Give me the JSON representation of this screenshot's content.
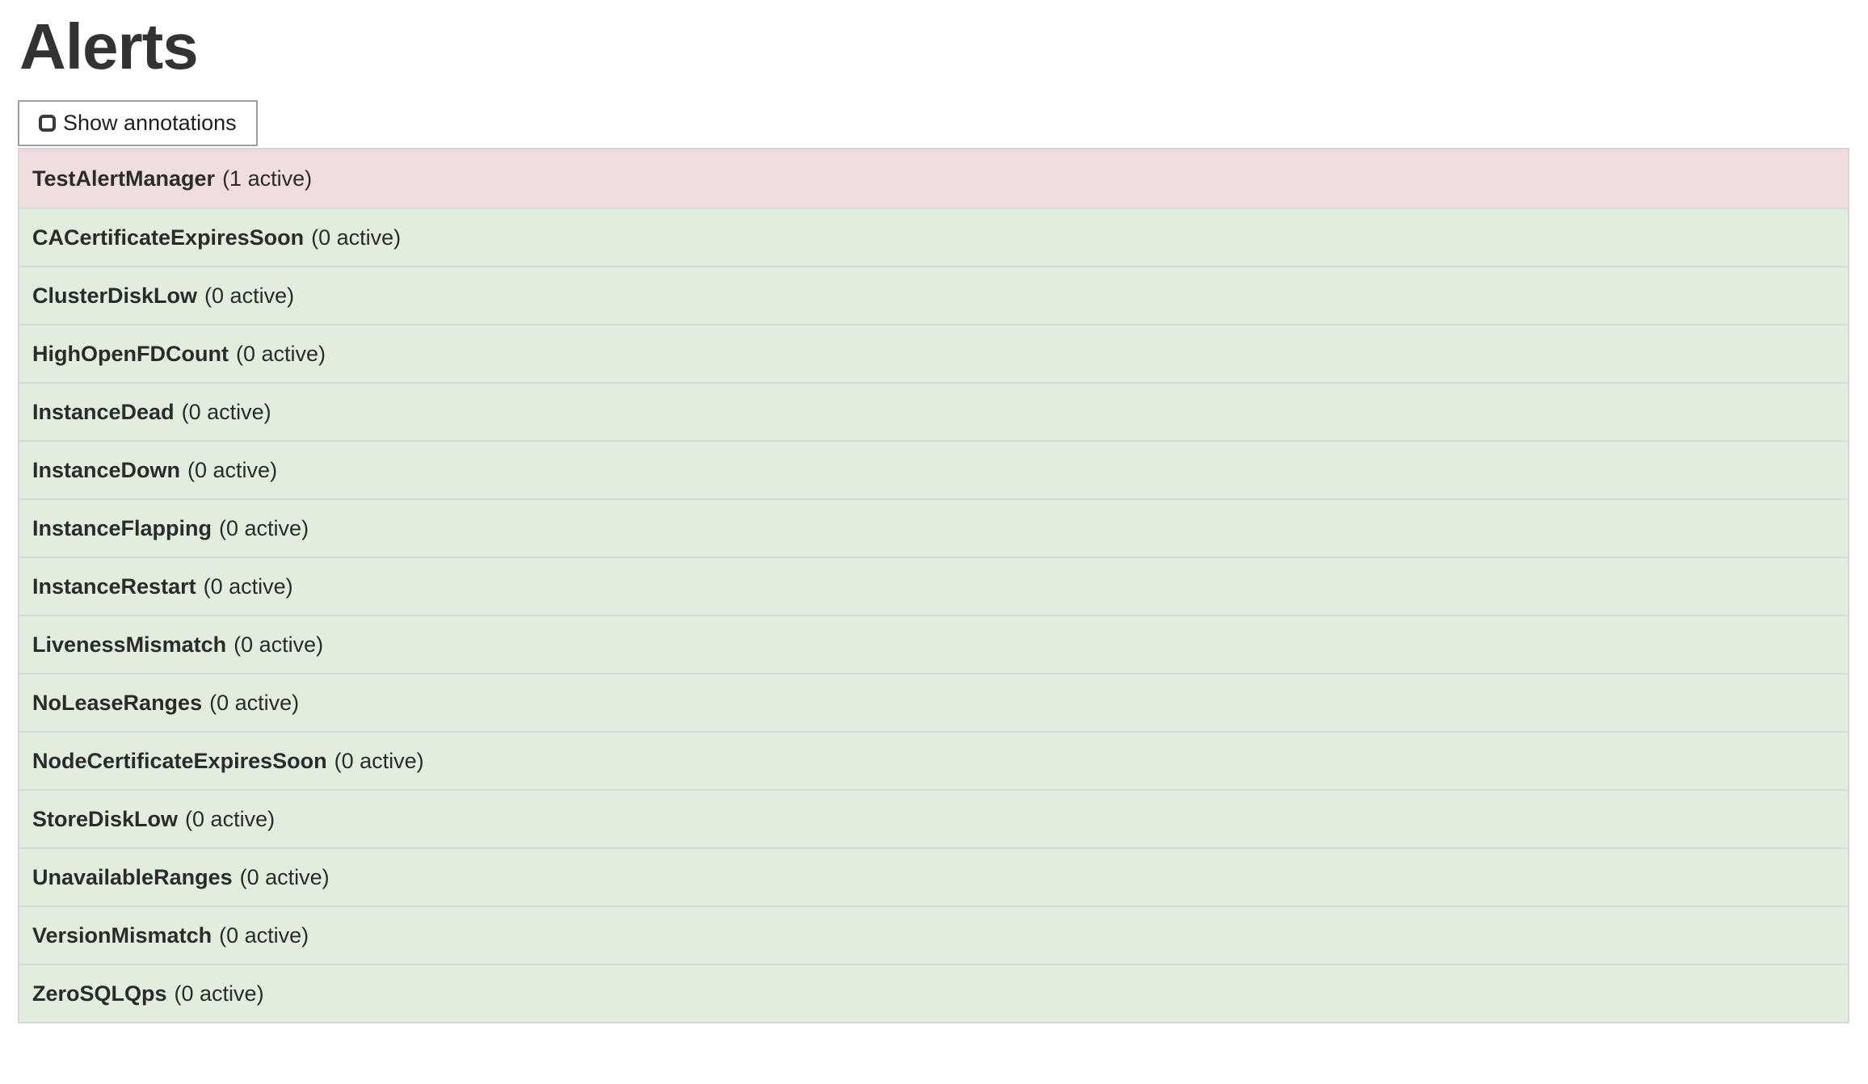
{
  "page": {
    "title": "Alerts"
  },
  "toolbar": {
    "show_annotations_label": "Show annotations",
    "checkbox_checked": false
  },
  "colors": {
    "firing_row_bg": "#f0dede",
    "inactive_row_bg": "#e2eedd",
    "table_border": "#d6d6d6",
    "row_divider": "#dadada",
    "button_border": "#9e9e9e",
    "text": "#333333"
  },
  "alerts": [
    {
      "name": "TestAlertManager",
      "count_label": "(1 active)",
      "active": 1,
      "state": "firing"
    },
    {
      "name": "CACertificateExpiresSoon",
      "count_label": "(0 active)",
      "active": 0,
      "state": "inactive"
    },
    {
      "name": "ClusterDiskLow",
      "count_label": "(0 active)",
      "active": 0,
      "state": "inactive"
    },
    {
      "name": "HighOpenFDCount",
      "count_label": "(0 active)",
      "active": 0,
      "state": "inactive"
    },
    {
      "name": "InstanceDead",
      "count_label": "(0 active)",
      "active": 0,
      "state": "inactive"
    },
    {
      "name": "InstanceDown",
      "count_label": "(0 active)",
      "active": 0,
      "state": "inactive"
    },
    {
      "name": "InstanceFlapping",
      "count_label": "(0 active)",
      "active": 0,
      "state": "inactive"
    },
    {
      "name": "InstanceRestart",
      "count_label": "(0 active)",
      "active": 0,
      "state": "inactive"
    },
    {
      "name": "LivenessMismatch",
      "count_label": "(0 active)",
      "active": 0,
      "state": "inactive"
    },
    {
      "name": "NoLeaseRanges",
      "count_label": "(0 active)",
      "active": 0,
      "state": "inactive"
    },
    {
      "name": "NodeCertificateExpiresSoon",
      "count_label": "(0 active)",
      "active": 0,
      "state": "inactive"
    },
    {
      "name": "StoreDiskLow",
      "count_label": "(0 active)",
      "active": 0,
      "state": "inactive"
    },
    {
      "name": "UnavailableRanges",
      "count_label": "(0 active)",
      "active": 0,
      "state": "inactive"
    },
    {
      "name": "VersionMismatch",
      "count_label": "(0 active)",
      "active": 0,
      "state": "inactive"
    },
    {
      "name": "ZeroSQLQps",
      "count_label": "(0 active)",
      "active": 0,
      "state": "inactive"
    }
  ]
}
